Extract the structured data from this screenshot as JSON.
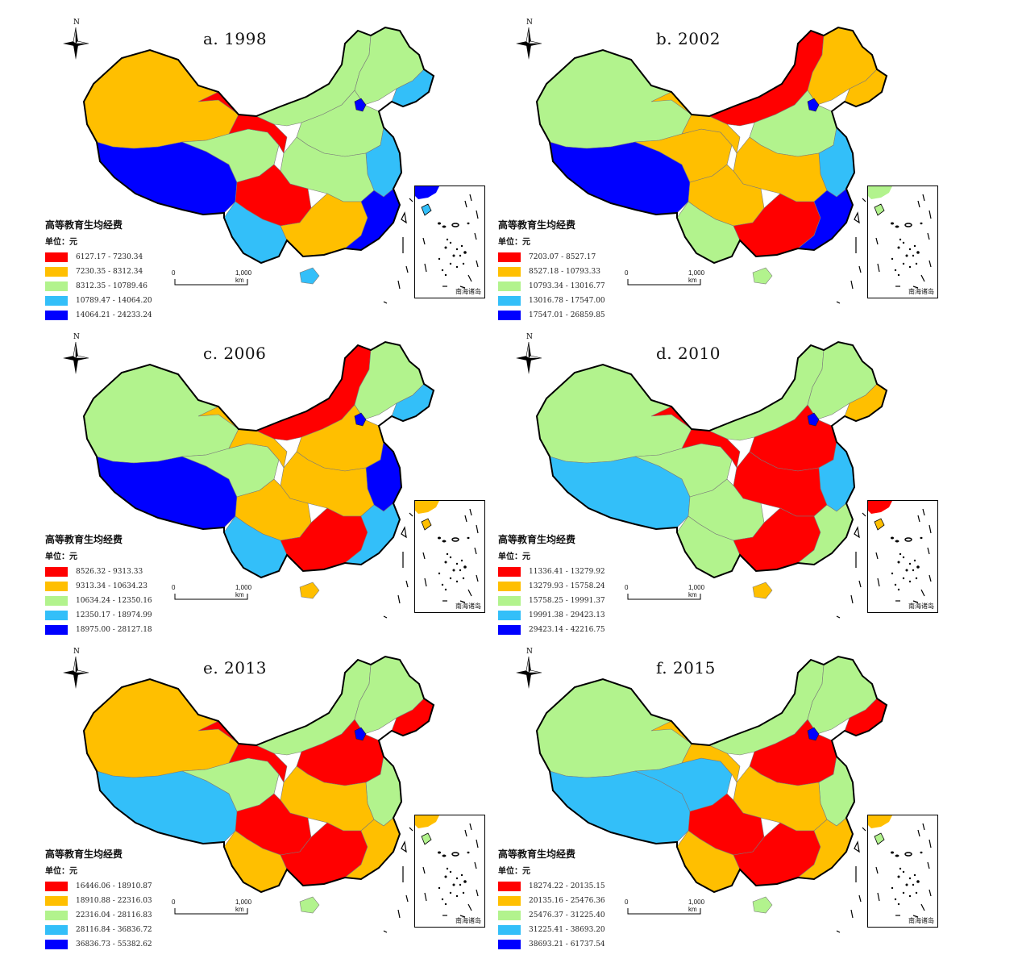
{
  "legend_title": "高等教育生均经费",
  "unit_label": "单位：元",
  "scale": {
    "zero": "0",
    "distance": "1,000 km"
  },
  "north_label": "N",
  "inset_label": "南海诸岛",
  "colors": {
    "c1": "#ff0000",
    "c2": "#ffbf00",
    "c3": "#b2f38d",
    "c4": "#33bff9",
    "c5": "#0000ff"
  },
  "panels": [
    {
      "title": "a. 1998",
      "classes": [
        "6127.17 - 7230.34",
        "7230.35 - 8312.34",
        "8312.35 - 10789.46",
        "10789.47 - 14064.20",
        "14064.21 - 24233.24"
      ],
      "regions": {
        "xinjiang": 2,
        "tibet": 5,
        "qinghai": 3,
        "gansu": 1,
        "innermongolia": 3,
        "northeast": 3,
        "heilongjiang_e": 4,
        "beijing": 5,
        "north_china": 3,
        "central": 3,
        "sichuan": 1,
        "yunnan": 4,
        "south": 2,
        "southeast": 5,
        "east": 4,
        "hainan": 4,
        "inset": 5
      }
    },
    {
      "title": "b. 2002",
      "classes": [
        "7203.07 - 8527.17",
        "8527.18 - 10793.33",
        "10793.34 - 13016.77",
        "13016.78 - 17547.00",
        "17547.01 - 26859.85"
      ],
      "regions": {
        "xinjiang": 3,
        "tibet": 5,
        "qinghai": 2,
        "gansu": 2,
        "innermongolia": 1,
        "northeast": 2,
        "heilongjiang_e": 2,
        "beijing": 5,
        "north_china": 3,
        "central": 2,
        "sichuan": 2,
        "yunnan": 3,
        "south": 1,
        "southeast": 5,
        "east": 4,
        "hainan": 3,
        "inset": 3
      }
    },
    {
      "title": "c. 2006",
      "classes": [
        "8526.32 - 9313.33",
        "9313.34 - 10634.23",
        "10634.24 - 12350.16",
        "12350.17 - 18974.99",
        "18975.00 - 28127.18"
      ],
      "regions": {
        "xinjiang": 3,
        "tibet": 5,
        "qinghai": 3,
        "gansu": 2,
        "innermongolia": 1,
        "northeast": 3,
        "heilongjiang_e": 4,
        "beijing": 5,
        "north_china": 2,
        "central": 2,
        "sichuan": 2,
        "yunnan": 4,
        "south": 1,
        "southeast": 4,
        "east": 5,
        "hainan": 2,
        "inset": 2
      }
    },
    {
      "title": "d. 2010",
      "classes": [
        "11336.41 - 13279.92",
        "13279.93 - 15758.24",
        "15758.25 - 19991.37",
        "19991.38 - 29423.13",
        "29423.14 - 42216.75"
      ],
      "regions": {
        "xinjiang": 3,
        "tibet": 4,
        "qinghai": 3,
        "gansu": 1,
        "innermongolia": 3,
        "northeast": 3,
        "heilongjiang_e": 2,
        "beijing": 5,
        "north_china": 1,
        "central": 1,
        "sichuan": 3,
        "yunnan": 3,
        "south": 1,
        "southeast": 3,
        "east": 4,
        "hainan": 2,
        "inset": 1
      }
    },
    {
      "title": "e. 2013",
      "classes": [
        "16446.06 - 18910.87",
        "18910.88 - 22316.03",
        "22316.04 - 28116.83",
        "28116.84 - 36836.72",
        "36836.73 - 55382.62"
      ],
      "regions": {
        "xinjiang": 2,
        "tibet": 4,
        "qinghai": 3,
        "gansu": 1,
        "innermongolia": 3,
        "northeast": 3,
        "heilongjiang_e": 1,
        "beijing": 5,
        "north_china": 1,
        "central": 2,
        "sichuan": 1,
        "yunnan": 2,
        "south": 1,
        "southeast": 2,
        "east": 3,
        "hainan": 3,
        "inset": 2
      }
    },
    {
      "title": "f. 2015",
      "classes": [
        "18274.22 - 20135.15",
        "20135.16 - 25476.36",
        "25476.37 - 31225.40",
        "31225.41 - 38693.20",
        "38693.21 - 61737.54"
      ],
      "regions": {
        "xinjiang": 3,
        "tibet": 4,
        "qinghai": 4,
        "gansu": 2,
        "innermongolia": 3,
        "northeast": 3,
        "heilongjiang_e": 1,
        "beijing": 5,
        "north_china": 1,
        "central": 2,
        "sichuan": 1,
        "yunnan": 2,
        "south": 1,
        "southeast": 2,
        "east": 3,
        "hainan": 3,
        "inset": 2
      }
    }
  ]
}
